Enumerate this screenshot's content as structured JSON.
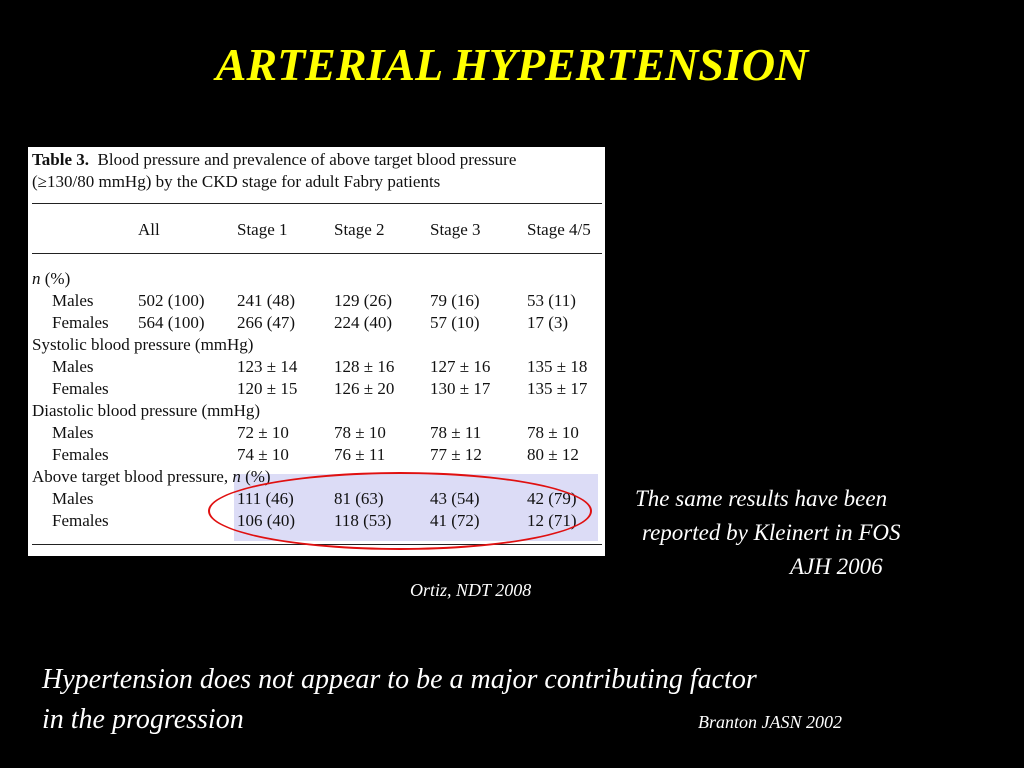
{
  "slide": {
    "title": "ARTERIAL HYPERTENSION",
    "source_citation": "Ortiz, NDT 2008",
    "side_note": [
      "The same results have been",
      "reported by Kleinert in FOS",
      "AJH  2006"
    ],
    "conclusion": [
      "Hypertension does not appear to be a major contributing factor",
      "in the progression"
    ],
    "conclusion_citation": "Branton JASN  2002",
    "colors": {
      "background": "#000000",
      "title": "#ffff00",
      "text": "#ffffff",
      "highlight_fill": "#dcdcf6",
      "ellipse_stroke": "#e01010"
    }
  },
  "table": {
    "label": "Table 3.",
    "caption_line1": "Blood pressure and prevalence of above target blood pressure",
    "caption_line2": "(≥130/80 mmHg) by the CKD stage for adult Fabry patients",
    "columns": [
      "All",
      "Stage 1",
      "Stage 2",
      "Stage 3",
      "Stage 4/5"
    ],
    "rows": [
      [
        "n (%)",
        "",
        "",
        "",
        "",
        ""
      ],
      [
        "Males",
        "502 (100)",
        "241 (48)",
        "129 (26)",
        "79 (16)",
        "53 (11)"
      ],
      [
        "Females",
        "564 (100)",
        "266 (47)",
        "224 (40)",
        "57 (10)",
        "17 (3)"
      ],
      [
        "Systolic blood pressure (mmHg)",
        "",
        "",
        "",
        "",
        ""
      ],
      [
        "Males",
        "",
        "123 ± 14",
        "128 ± 16",
        "127 ± 16",
        "135 ± 18"
      ],
      [
        "Females",
        "",
        "120 ± 15",
        "126 ± 20",
        "130 ± 17",
        "135 ± 17"
      ],
      [
        "Diastolic blood pressure (mmHg)",
        "",
        "",
        "",
        "",
        ""
      ],
      [
        "Males",
        "",
        "72 ± 10",
        "78 ± 10",
        "78 ± 11",
        "78 ± 10"
      ],
      [
        "Females",
        "",
        "74 ± 10",
        "76 ± 11",
        "77 ± 12",
        "80 ± 12"
      ],
      [
        "Above target blood pressure, n (%)",
        "",
        "",
        "",
        "",
        ""
      ],
      [
        "Males",
        "",
        "111 (46)",
        "81 (63)",
        "43 (54)",
        "42 (79)"
      ],
      [
        "Females",
        "",
        "106 (40)",
        "118 (53)",
        "41 (72)",
        "12 (71)"
      ]
    ]
  }
}
